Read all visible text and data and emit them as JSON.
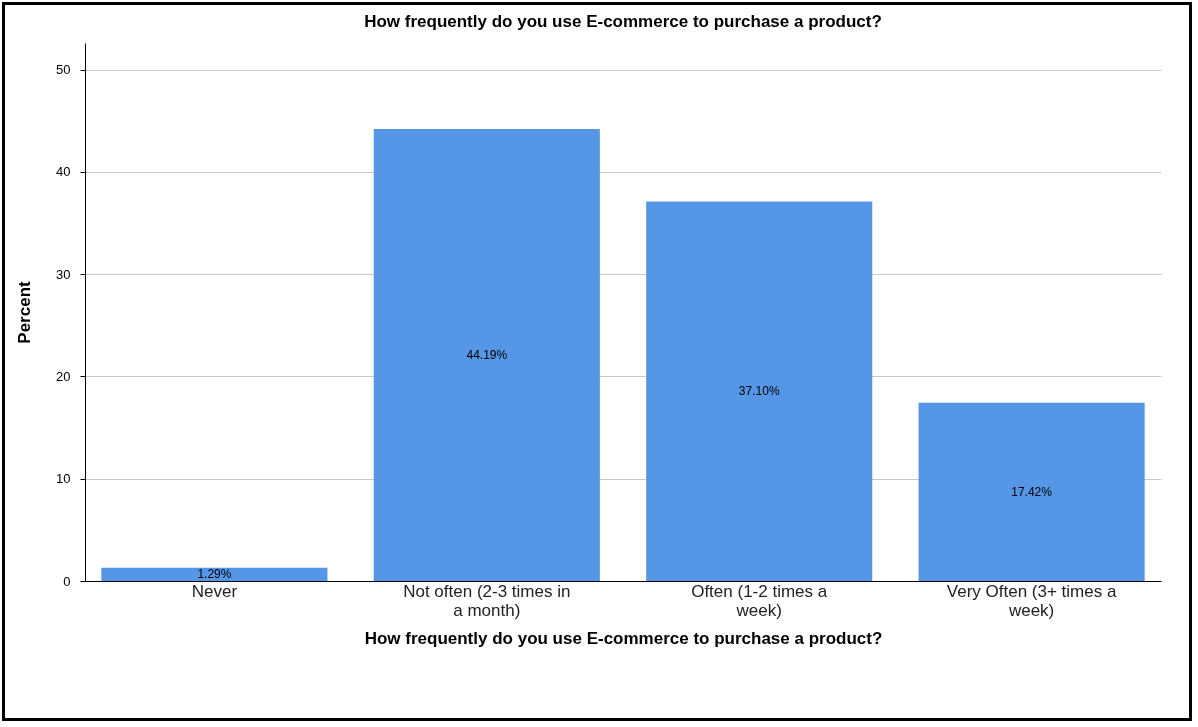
{
  "chart_data": {
    "type": "bar",
    "title": "How frequently do you use E-commerce to purchase a product?",
    "xlabel": "How frequently do you use E-commerce to purchase a product?",
    "ylabel": "Percent",
    "categories": [
      "Never",
      "Not often (2-3 times in a month)",
      "Often (1-2 times a week)",
      "Very Often (3+ times a week)"
    ],
    "values": [
      1.29,
      44.19,
      37.1,
      17.42
    ],
    "value_labels": [
      "1.29%",
      "44.19%",
      "37.10%",
      "17.42%"
    ],
    "color": "#5596e6",
    "ylim": [
      0,
      52.6
    ],
    "yticks": [
      0,
      10,
      20,
      30,
      40,
      50
    ],
    "grid": "y"
  }
}
